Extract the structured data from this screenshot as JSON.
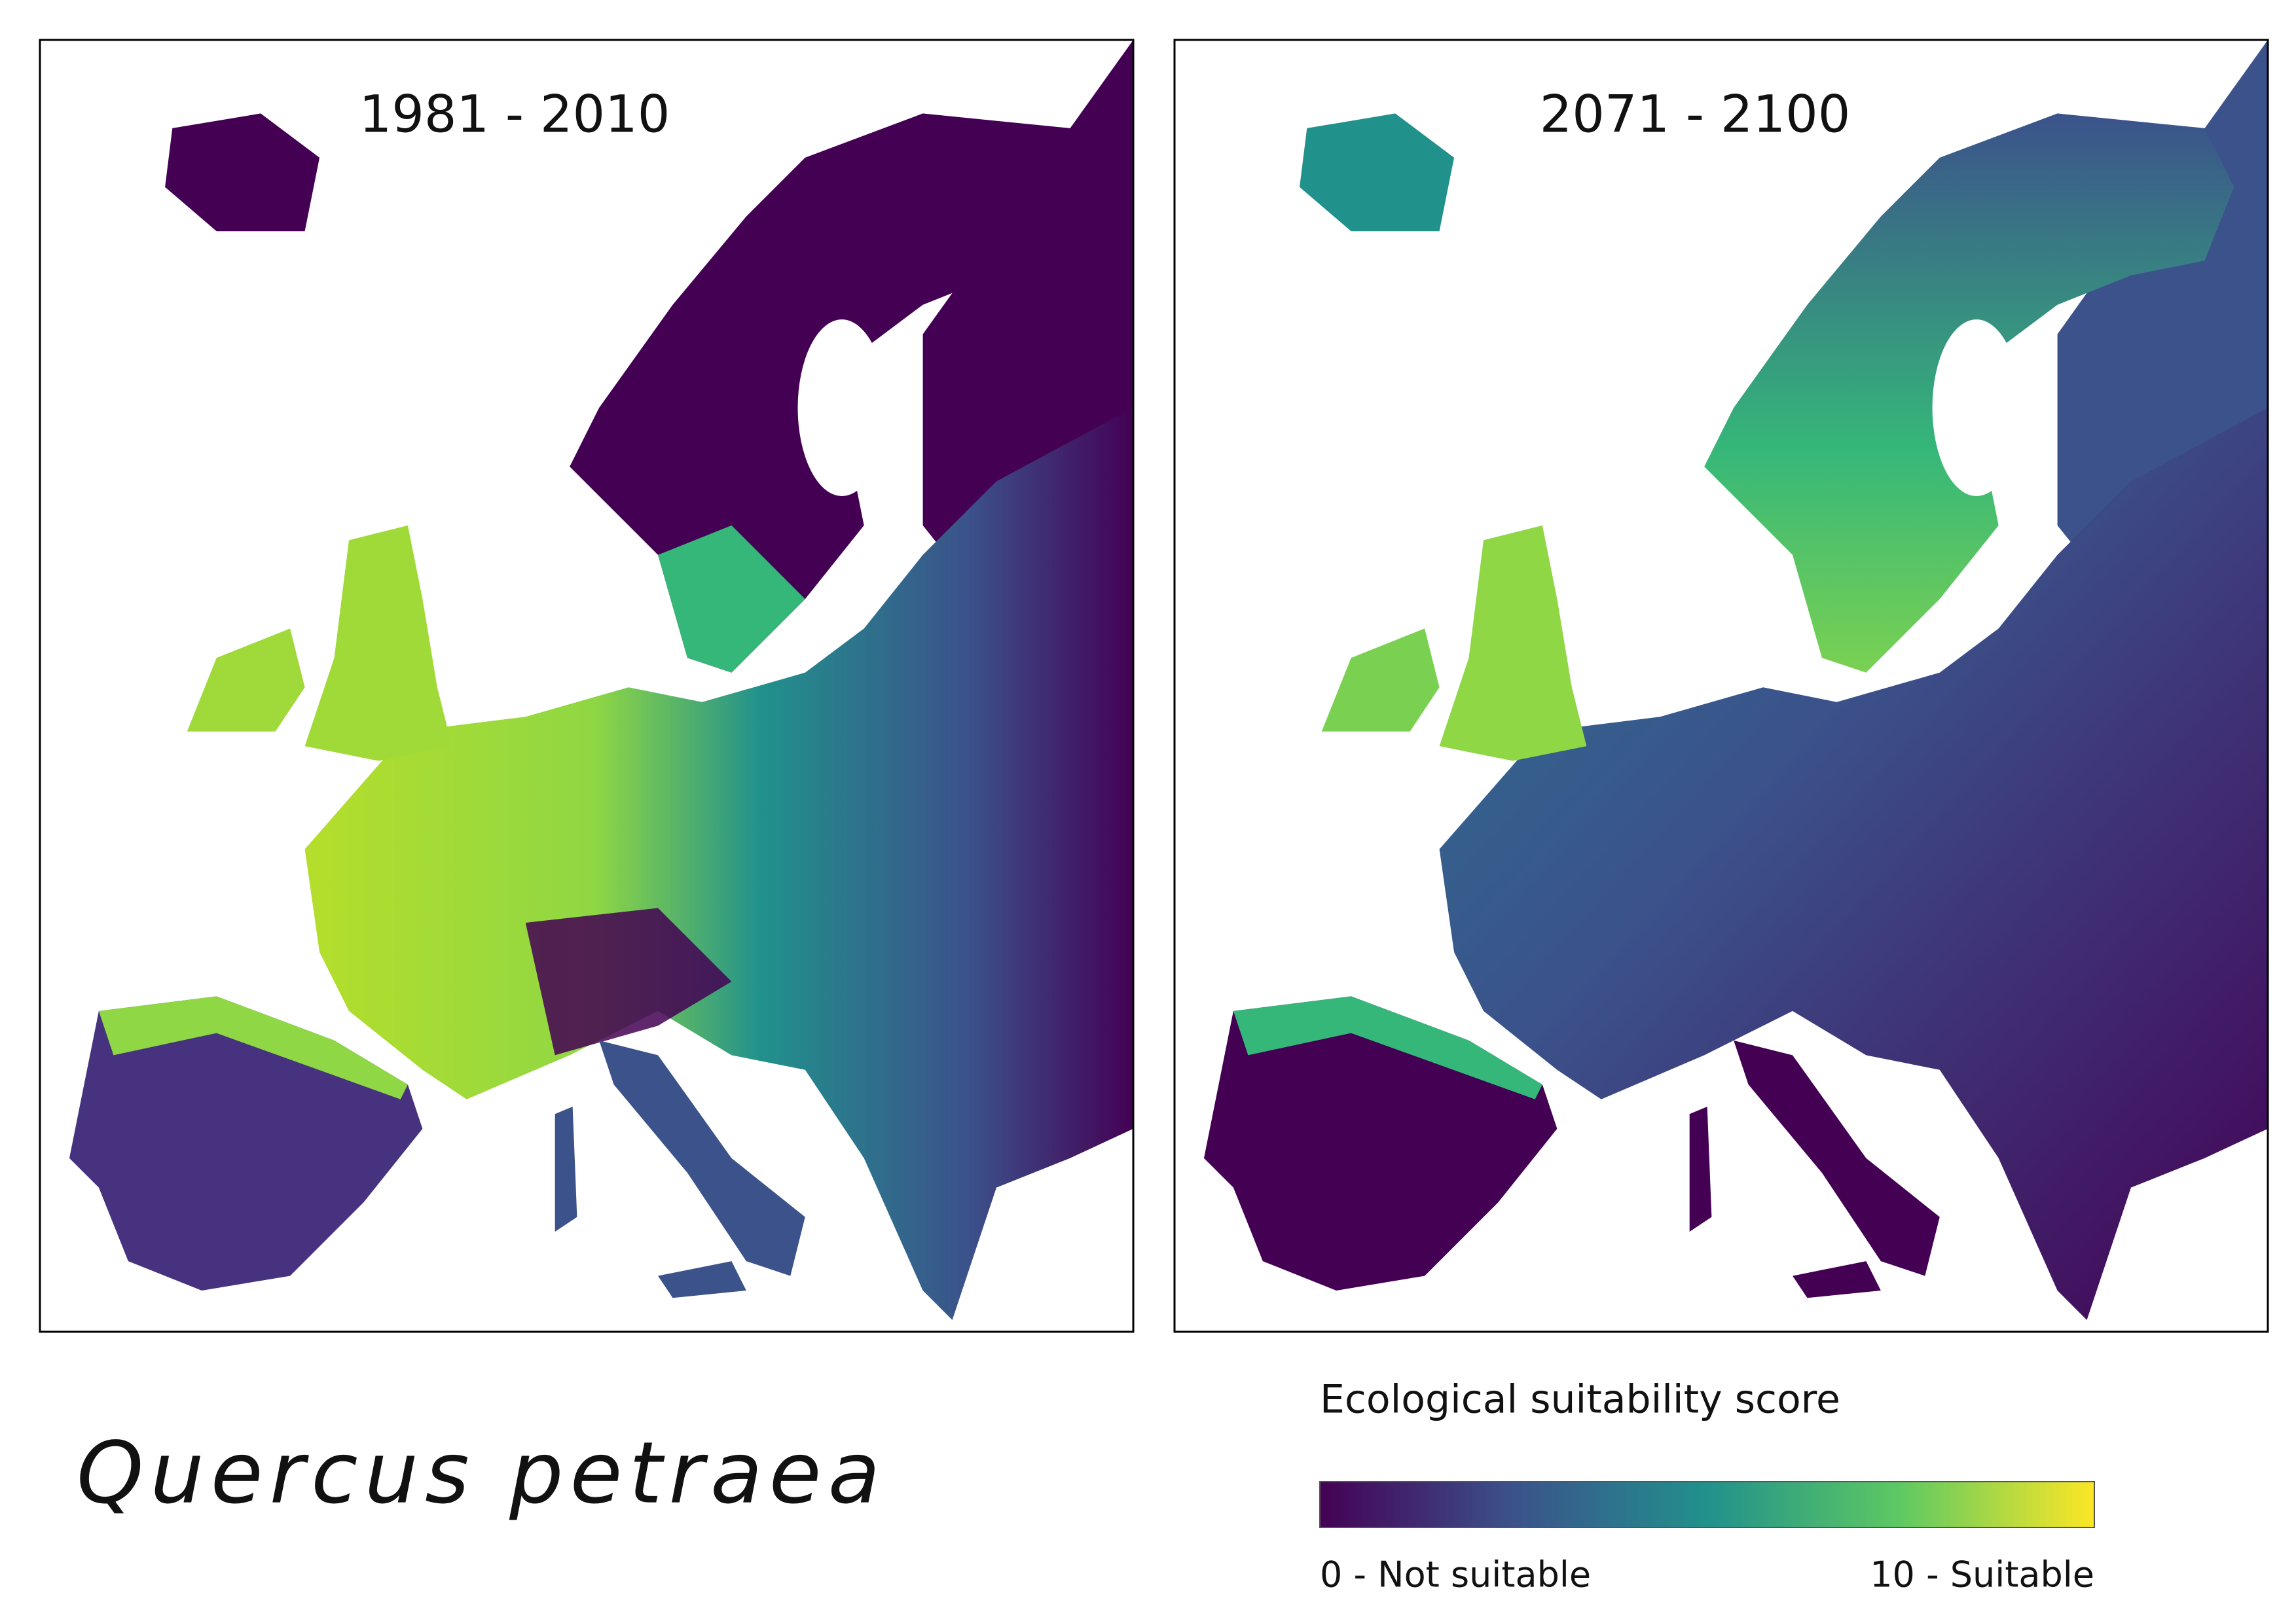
{
  "panels": [
    {
      "title": "1981 - 2010"
    },
    {
      "title": "2071 - 2100"
    }
  ],
  "species": "Quercus petraea",
  "legend": {
    "title": "Ecological suitability score",
    "min_label": "0 - Not suitable",
    "max_label": "10 - Suitable",
    "colormap": [
      "#440154",
      "#3b528b",
      "#21918c",
      "#5ec962",
      "#fde725"
    ]
  }
}
